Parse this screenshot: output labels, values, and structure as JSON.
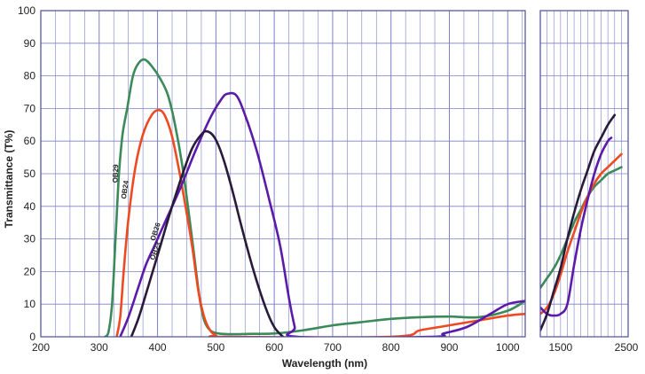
{
  "chart_data": {
    "type": "line",
    "title": "",
    "xlabel": "Wavelength (nm)",
    "ylabel": "Transmittance (T%)",
    "ylim": [
      0,
      100
    ],
    "yticks": [
      0,
      10,
      20,
      30,
      40,
      50,
      60,
      70,
      80,
      90,
      100
    ],
    "grid": true,
    "legend": "none (series labelled directly on curves)",
    "panels": [
      {
        "name": "main",
        "xlim": [
          200,
          1030
        ],
        "xticks": [
          200,
          300,
          400,
          500,
          600,
          700,
          800,
          900,
          1000
        ],
        "xtick_labels": [
          "200",
          "300",
          "400",
          "500",
          "600",
          "700",
          "800",
          "900",
          "1000"
        ]
      },
      {
        "name": "near-infrared",
        "xlim": [
          1200,
          2500
        ],
        "xticks": [
          1500,
          2500
        ],
        "xtick_labels": [
          "1500",
          "2500"
        ]
      }
    ],
    "series": [
      {
        "name": "OB29",
        "color": "#3a8a5a",
        "panel_main": [
          [
            310,
            0
          ],
          [
            316,
            1.5
          ],
          [
            322,
            10
          ],
          [
            328,
            30
          ],
          [
            334,
            50
          ],
          [
            340,
            62
          ],
          [
            348,
            70
          ],
          [
            358,
            80
          ],
          [
            368,
            84
          ],
          [
            378,
            85
          ],
          [
            390,
            83
          ],
          [
            405,
            79
          ],
          [
            418,
            74
          ],
          [
            430,
            65
          ],
          [
            442,
            53
          ],
          [
            452,
            40
          ],
          [
            462,
            26
          ],
          [
            472,
            12
          ],
          [
            480,
            5
          ],
          [
            490,
            2
          ],
          [
            505,
            1
          ],
          [
            530,
            0.8
          ],
          [
            560,
            0.9
          ],
          [
            600,
            1
          ],
          [
            650,
            2
          ],
          [
            700,
            3.5
          ],
          [
            750,
            4.5
          ],
          [
            800,
            5.5
          ],
          [
            850,
            6
          ],
          [
            900,
            6.2
          ],
          [
            950,
            6
          ],
          [
            1000,
            8
          ],
          [
            1030,
            11
          ]
        ],
        "panel_nir": [
          [
            1200,
            15
          ],
          [
            1300,
            18
          ],
          [
            1400,
            21
          ],
          [
            1500,
            25
          ],
          [
            1600,
            30
          ],
          [
            1700,
            35
          ],
          [
            1800,
            39
          ],
          [
            1900,
            43
          ],
          [
            2000,
            46
          ],
          [
            2100,
            48
          ],
          [
            2200,
            50
          ],
          [
            2300,
            51
          ],
          [
            2400,
            52
          ]
        ]
      },
      {
        "name": "OB24",
        "color": "#ee4a22",
        "panel_main": [
          [
            330,
            0
          ],
          [
            336,
            6
          ],
          [
            342,
            20
          ],
          [
            350,
            36
          ],
          [
            362,
            52
          ],
          [
            375,
            62
          ],
          [
            390,
            68
          ],
          [
            402,
            69.5
          ],
          [
            412,
            68
          ],
          [
            424,
            62
          ],
          [
            436,
            52
          ],
          [
            448,
            40
          ],
          [
            460,
            27
          ],
          [
            470,
            14
          ],
          [
            480,
            6
          ],
          [
            490,
            2
          ],
          [
            500,
            0.5
          ],
          [
            515,
            0
          ],
          [
            800,
            0
          ],
          [
            850,
            2
          ],
          [
            900,
            3.5
          ],
          [
            950,
            5
          ],
          [
            1000,
            6.5
          ],
          [
            1030,
            7
          ]
        ],
        "panel_nir": [
          [
            1200,
            7
          ],
          [
            1300,
            9
          ],
          [
            1400,
            13
          ],
          [
            1500,
            19
          ],
          [
            1600,
            26
          ],
          [
            1700,
            32
          ],
          [
            1800,
            38
          ],
          [
            1900,
            43
          ],
          [
            2000,
            47
          ],
          [
            2100,
            50
          ],
          [
            2200,
            52
          ],
          [
            2300,
            54
          ],
          [
            2400,
            56
          ]
        ]
      },
      {
        "name": "OB26",
        "color": "#5b1aa8",
        "panel_main": [
          [
            336,
            0
          ],
          [
            350,
            6
          ],
          [
            365,
            14
          ],
          [
            380,
            22
          ],
          [
            395,
            28
          ],
          [
            415,
            36
          ],
          [
            440,
            46
          ],
          [
            465,
            57
          ],
          [
            490,
            67
          ],
          [
            510,
            73
          ],
          [
            520,
            74.5
          ],
          [
            535,
            74
          ],
          [
            550,
            68
          ],
          [
            570,
            57
          ],
          [
            590,
            43
          ],
          [
            610,
            28
          ],
          [
            625,
            12
          ],
          [
            635,
            3
          ],
          [
            640,
            0
          ],
          [
            870,
            0
          ],
          [
            890,
            1
          ],
          [
            930,
            3
          ],
          [
            970,
            7
          ],
          [
            1000,
            10
          ],
          [
            1030,
            11
          ]
        ],
        "panel_nir": [
          [
            1200,
            9
          ],
          [
            1300,
            7
          ],
          [
            1400,
            6.5
          ],
          [
            1500,
            7
          ],
          [
            1600,
            10
          ],
          [
            1700,
            22
          ],
          [
            1800,
            33
          ],
          [
            1900,
            42
          ],
          [
            2000,
            50
          ],
          [
            2100,
            56
          ],
          [
            2200,
            60
          ],
          [
            2250,
            61
          ]
        ]
      },
      {
        "name": "OB23",
        "color": "#2a1a3a",
        "panel_main": [
          [
            355,
            0
          ],
          [
            368,
            6
          ],
          [
            385,
            16
          ],
          [
            405,
            28
          ],
          [
            425,
            40
          ],
          [
            445,
            51
          ],
          [
            460,
            58
          ],
          [
            475,
            62
          ],
          [
            485,
            63
          ],
          [
            498,
            61
          ],
          [
            512,
            55
          ],
          [
            528,
            45
          ],
          [
            545,
            33
          ],
          [
            565,
            20
          ],
          [
            585,
            9
          ],
          [
            600,
            3
          ],
          [
            615,
            0
          ]
        ],
        "panel_nir": [
          [
            1200,
            2
          ],
          [
            1300,
            7
          ],
          [
            1400,
            14
          ],
          [
            1500,
            21
          ],
          [
            1600,
            30
          ],
          [
            1700,
            38
          ],
          [
            1800,
            45
          ],
          [
            1900,
            51
          ],
          [
            2000,
            57
          ],
          [
            2100,
            61
          ],
          [
            2200,
            65
          ],
          [
            2300,
            68
          ]
        ]
      }
    ]
  }
}
